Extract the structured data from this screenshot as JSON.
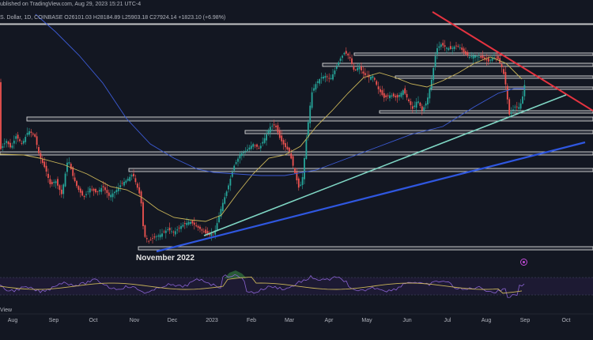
{
  "header": {
    "published": "ublished on TradingView.com, Aug 29, 2023 15:21 UTC-4",
    "symbol_line": "S. Dollar, 1D, COINBASE  O26101.03  H28184.89  L25903.18  C27924.14  +1823.10 (+6.98%)"
  },
  "annotation": {
    "label": "November 2022"
  },
  "rsi_pane": {
    "label": "View"
  },
  "colors": {
    "background": "#131722",
    "up": "#26a69a",
    "down": "#ef5350",
    "sma_short": "#c9b458",
    "sma_long": "#3c5bd6",
    "resistance_line": "#e53340",
    "support_teal": "#7fd6c4",
    "support_blue": "#2f57e0",
    "rsi": "#8a63d2"
  },
  "chart_data": {
    "type": "candlestick",
    "title": "",
    "x_axis": {
      "tick_labels": [
        "Aug",
        "Sep",
        "Oct",
        "Nov",
        "Dec",
        "2023",
        "Feb",
        "Mar",
        "Apr",
        "May",
        "Jun",
        "Jul",
        "Aug",
        "Sep",
        "Oct"
      ],
      "range": [
        "2022-08-01",
        "2023-10-25"
      ]
    },
    "y_axis": {
      "visible": false,
      "note": "price scale not shown"
    },
    "series": [
      {
        "name": "",
        "type": "candles",
        "values": "approximate price path, daily bars"
      },
      {
        "name": "",
        "type": "moving-average-short",
        "values": "yellow MA"
      },
      {
        "name": "",
        "type": "moving-average-long",
        "values": "blue MA"
      }
    ],
    "horizontal_levels_count": 11,
    "trendlines": [
      "red descending resistance",
      "teal ascending support",
      "blue ascending support"
    ],
    "annotations": [
      "November 2022"
    ],
    "rsi_subpane": true,
    "grid": false,
    "legend": "none"
  }
}
